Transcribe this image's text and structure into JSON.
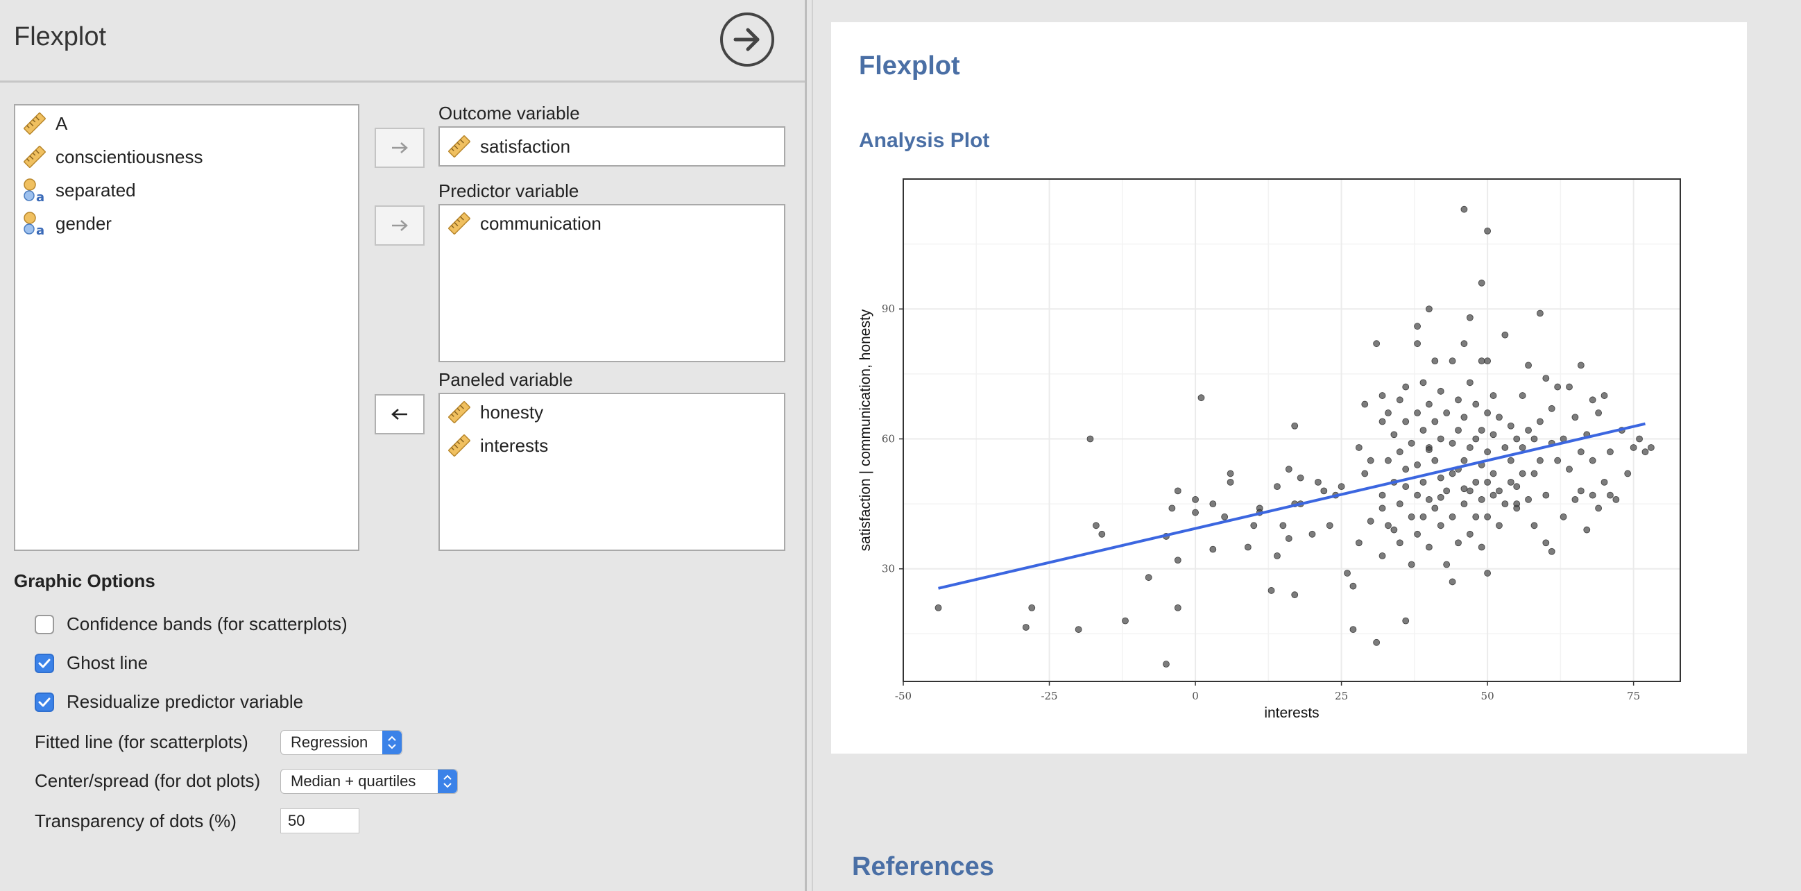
{
  "left_panel": {
    "title": "Flexplot",
    "run_icon": "arrow-right-circle-icon",
    "variables": [
      {
        "name": "A",
        "icon": "scale-ruler-icon"
      },
      {
        "name": "conscientiousness",
        "icon": "scale-ruler-icon"
      },
      {
        "name": "separated",
        "icon": "nominal-icon"
      },
      {
        "name": "gender",
        "icon": "nominal-icon"
      }
    ],
    "outcome": {
      "label": "Outcome variable",
      "items": [
        "satisfaction"
      ]
    },
    "predictor": {
      "label": "Predictor variable",
      "items": [
        "communication"
      ]
    },
    "paneled": {
      "label": "Paneled variable",
      "items": [
        "honesty",
        "interests"
      ]
    },
    "graphic_options": {
      "title": "Graphic Options",
      "confidence_bands": {
        "label": "Confidence bands (for scatterplots)",
        "checked": false
      },
      "ghost_line": {
        "label": "Ghost line",
        "checked": true
      },
      "residualize": {
        "label": "Residualize predictor variable",
        "checked": true
      },
      "fitted_line": {
        "label": "Fitted line (for scatterplots)",
        "value": "Regression"
      },
      "center_spread": {
        "label": "Center/spread (for dot plots)",
        "value": "Median + quartiles"
      },
      "transparency": {
        "label": "Transparency of dots (%)",
        "value": "50"
      }
    }
  },
  "results": {
    "title": "Flexplot",
    "subtitle": "Analysis Plot",
    "references": "References"
  },
  "chart_data": {
    "type": "scatter",
    "title": "",
    "xlabel": "interests",
    "ylabel": "satisfaction | communication, honesty",
    "xlim": [
      -50,
      83
    ],
    "ylim": [
      4,
      120
    ],
    "x_ticks": [
      -50,
      -25,
      0,
      25,
      50,
      75
    ],
    "y_ticks": [
      30,
      60,
      90
    ],
    "grid": true,
    "legend": "none",
    "point_color": "#444444",
    "line_color": "#3b66e0",
    "fit_line": {
      "x": [
        -44,
        77
      ],
      "y": [
        25.5,
        63.5
      ]
    },
    "points": [
      [
        -44,
        21
      ],
      [
        -29,
        16.5
      ],
      [
        -28,
        21
      ],
      [
        -20,
        16
      ],
      [
        -18,
        60
      ],
      [
        -17,
        40
      ],
      [
        -16,
        38
      ],
      [
        -12,
        18
      ],
      [
        -5,
        37.5
      ],
      [
        -5,
        8
      ],
      [
        -8,
        28
      ],
      [
        -4,
        44
      ],
      [
        -3,
        48
      ],
      [
        -3,
        32
      ],
      [
        -3,
        21
      ],
      [
        0,
        46
      ],
      [
        0,
        43
      ],
      [
        1,
        69.5
      ],
      [
        3,
        34.5
      ],
      [
        3,
        45
      ],
      [
        5,
        42
      ],
      [
        6,
        52
      ],
      [
        6,
        50
      ],
      [
        9,
        35
      ],
      [
        10,
        40
      ],
      [
        11,
        44
      ],
      [
        11,
        43
      ],
      [
        13,
        25
      ],
      [
        14,
        33
      ],
      [
        14,
        49
      ],
      [
        15,
        40
      ],
      [
        16,
        53
      ],
      [
        16,
        37
      ],
      [
        17,
        63
      ],
      [
        17,
        24
      ],
      [
        17,
        45
      ],
      [
        18,
        45
      ],
      [
        18,
        51
      ],
      [
        20,
        38
      ],
      [
        21,
        50
      ],
      [
        22,
        48
      ],
      [
        23,
        40
      ],
      [
        24,
        47
      ],
      [
        25,
        49
      ],
      [
        26,
        29
      ],
      [
        27,
        26
      ],
      [
        27,
        16
      ],
      [
        28,
        58
      ],
      [
        28,
        36
      ],
      [
        29,
        68
      ],
      [
        29,
        52
      ],
      [
        30,
        41
      ],
      [
        30,
        55
      ],
      [
        31,
        82
      ],
      [
        31,
        13
      ],
      [
        32,
        70
      ],
      [
        32,
        64
      ],
      [
        32,
        47
      ],
      [
        32,
        44
      ],
      [
        32,
        33
      ],
      [
        33,
        66
      ],
      [
        33,
        55
      ],
      [
        33,
        40
      ],
      [
        34,
        61
      ],
      [
        34,
        50
      ],
      [
        34,
        39
      ],
      [
        35,
        69
      ],
      [
        35,
        57
      ],
      [
        35,
        45
      ],
      [
        35,
        36
      ],
      [
        36,
        18
      ],
      [
        36,
        72
      ],
      [
        36,
        64
      ],
      [
        36,
        53
      ],
      [
        36,
        49
      ],
      [
        37,
        59
      ],
      [
        37,
        42
      ],
      [
        37,
        31
      ],
      [
        38,
        86
      ],
      [
        38,
        82
      ],
      [
        38,
        66
      ],
      [
        38,
        54
      ],
      [
        38,
        47
      ],
      [
        38,
        38
      ],
      [
        39,
        73
      ],
      [
        39,
        62
      ],
      [
        39,
        50
      ],
      [
        39,
        42
      ],
      [
        40,
        90
      ],
      [
        40,
        68
      ],
      [
        40,
        58
      ],
      [
        40,
        46
      ],
      [
        40,
        35
      ],
      [
        41,
        78
      ],
      [
        41,
        64
      ],
      [
        41,
        55
      ],
      [
        41,
        44
      ],
      [
        42,
        71
      ],
      [
        42,
        60
      ],
      [
        42,
        51
      ],
      [
        42,
        40
      ],
      [
        43,
        66
      ],
      [
        43,
        48
      ],
      [
        43,
        31
      ],
      [
        44,
        78
      ],
      [
        44,
        59
      ],
      [
        44,
        52
      ],
      [
        44,
        42
      ],
      [
        44,
        27
      ],
      [
        45,
        69
      ],
      [
        45,
        62
      ],
      [
        45,
        53
      ],
      [
        45,
        36
      ],
      [
        46,
        113
      ],
      [
        46,
        82
      ],
      [
        46,
        65
      ],
      [
        46,
        55
      ],
      [
        46,
        45
      ],
      [
        47,
        88
      ],
      [
        47,
        73
      ],
      [
        47,
        58
      ],
      [
        47,
        48
      ],
      [
        47,
        38
      ],
      [
        48,
        68
      ],
      [
        48,
        60
      ],
      [
        48,
        50
      ],
      [
        48,
        42
      ],
      [
        49,
        96
      ],
      [
        49,
        78
      ],
      [
        49,
        62
      ],
      [
        49,
        54
      ],
      [
        49,
        46
      ],
      [
        49,
        35
      ],
      [
        50,
        108
      ],
      [
        50,
        78
      ],
      [
        50,
        66
      ],
      [
        50,
        57
      ],
      [
        50,
        50
      ],
      [
        50,
        42
      ],
      [
        50,
        29
      ],
      [
        51,
        70
      ],
      [
        51,
        61
      ],
      [
        51,
        52
      ],
      [
        52,
        65
      ],
      [
        52,
        48
      ],
      [
        52,
        40
      ],
      [
        53,
        84
      ],
      [
        53,
        58
      ],
      [
        53,
        45
      ],
      [
        54,
        63
      ],
      [
        54,
        55
      ],
      [
        54,
        50
      ],
      [
        55,
        60
      ],
      [
        55,
        49
      ],
      [
        55,
        44
      ],
      [
        56,
        70
      ],
      [
        56,
        58
      ],
      [
        56,
        52
      ],
      [
        57,
        77
      ],
      [
        57,
        62
      ],
      [
        57,
        46
      ],
      [
        58,
        60
      ],
      [
        58,
        52
      ],
      [
        58,
        40
      ],
      [
        59,
        89
      ],
      [
        59,
        64
      ],
      [
        59,
        55
      ],
      [
        60,
        74
      ],
      [
        60,
        47
      ],
      [
        60,
        36
      ],
      [
        61,
        67
      ],
      [
        61,
        59
      ],
      [
        61,
        34
      ],
      [
        62,
        72
      ],
      [
        62,
        55
      ],
      [
        63,
        60
      ],
      [
        63,
        42
      ],
      [
        64,
        72
      ],
      [
        64,
        53
      ],
      [
        65,
        65
      ],
      [
        65,
        46
      ],
      [
        66,
        77
      ],
      [
        66,
        57
      ],
      [
        66,
        48
      ],
      [
        67,
        61
      ],
      [
        67,
        39
      ],
      [
        68,
        69
      ],
      [
        68,
        55
      ],
      [
        68,
        47
      ],
      [
        69,
        66
      ],
      [
        69,
        44
      ],
      [
        70,
        70
      ],
      [
        70,
        50
      ],
      [
        71,
        57
      ],
      [
        71,
        47
      ],
      [
        72,
        46
      ],
      [
        73,
        62
      ],
      [
        74,
        52
      ],
      [
        75,
        58
      ],
      [
        76,
        60
      ],
      [
        77,
        57
      ],
      [
        78,
        58
      ],
      [
        40,
        57.5
      ],
      [
        42,
        46.5
      ],
      [
        46,
        48.5
      ],
      [
        51,
        47
      ],
      [
        55,
        45
      ]
    ]
  }
}
